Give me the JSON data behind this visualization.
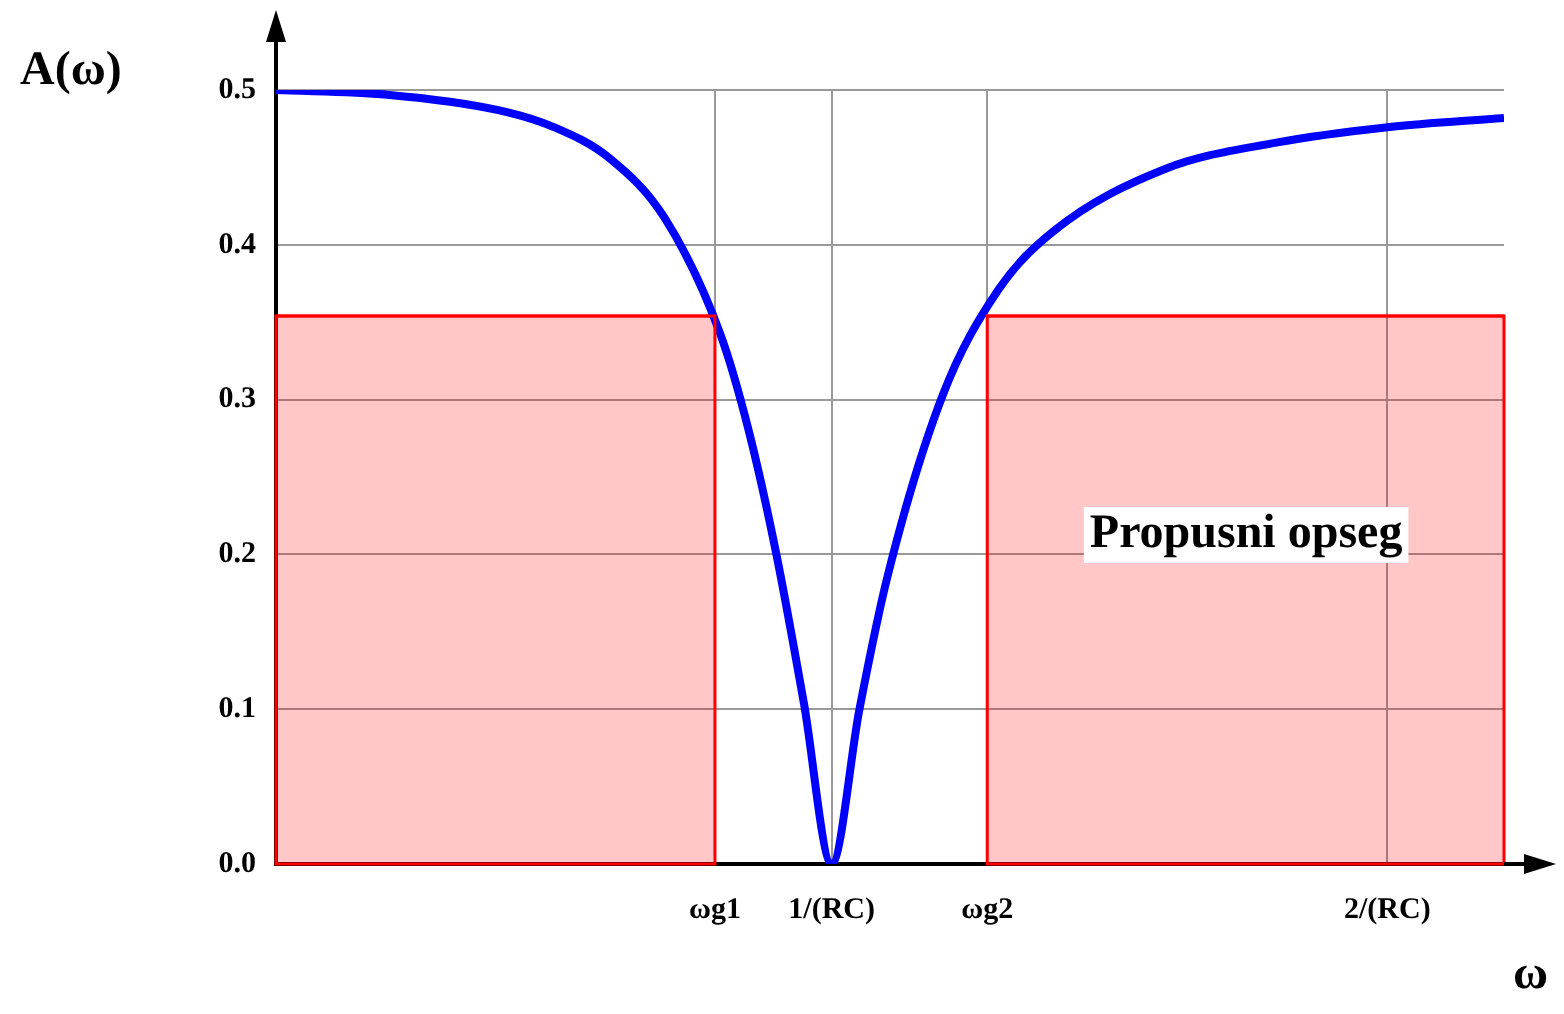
{
  "chart_data": {
    "type": "line",
    "ylabel": "A(ω)",
    "xlabel": "ω",
    "xlim": [
      0,
      2.21
    ],
    "ylim": [
      0,
      0.5
    ],
    "xticks": [
      {
        "value": 0.79,
        "label": "ωg1"
      },
      {
        "value": 1,
        "label": "1/(RC)"
      },
      {
        "value": 1.28,
        "label": "ωg2"
      },
      {
        "value": 2,
        "label": "2/(RC)"
      }
    ],
    "yticks": [
      {
        "value": 0,
        "label": "0.0"
      },
      0.1,
      0.2,
      0.3,
      0.4,
      0.5
    ],
    "grid": true,
    "legend": false,
    "marker": "none",
    "line_style": "solid",
    "annotations": [
      "Propusni opseg"
    ],
    "series": [
      {
        "type": "area",
        "color": "#ff0000",
        "x": [
          0,
          0.79
        ],
        "values": [
          0.354,
          0.354
        ]
      },
      {
        "type": "area",
        "color": "#ff0000",
        "x": [
          1.28,
          2.21
        ],
        "values": [
          0.354,
          0.354
        ]
      },
      {
        "type": "line",
        "color": "#0000ff",
        "x": [
          0,
          0.2,
          0.4,
          0.5,
          0.6,
          0.7,
          0.8,
          0.85,
          0.9,
          0.95,
          1,
          1.05,
          1.1,
          1.2,
          1.3,
          1.4,
          1.6,
          1.8,
          2,
          2.21
        ],
        "values": [
          0.5,
          0.497,
          0.487,
          0.476,
          0.456,
          0.417,
          0.342,
          0.281,
          0.201,
          0.104,
          0,
          0.1,
          0.185,
          0.303,
          0.371,
          0.409,
          0.449,
          0.466,
          0.476,
          0.482
        ]
      }
    ]
  }
}
